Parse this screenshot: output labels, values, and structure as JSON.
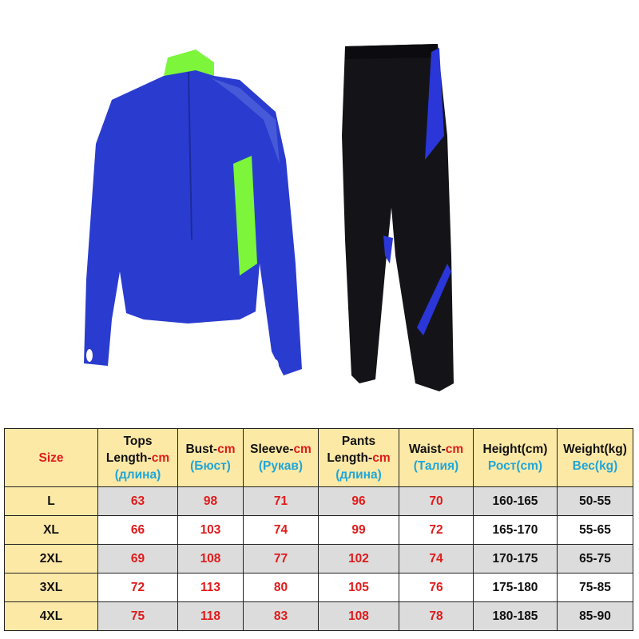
{
  "colors": {
    "header_bg": "#fde9a6",
    "accent_red": "#e01b1b",
    "accent_blue": "#20a6d9",
    "shirt": "#2a3ccf",
    "shirt_accent": "#7cf53a",
    "pants": "#141418",
    "pants_stripe": "#2a36d8"
  },
  "images": {
    "top": "blue long-sleeve half-zip training top with neon green collar and side panels",
    "pants": "black training pants with blue side stripes"
  },
  "header": {
    "size": "Size",
    "tops": {
      "l1": "Tops",
      "l2a": "Length-",
      "l2b": "cm",
      "l3": "(длина)"
    },
    "bust": {
      "l1a": "Bust-",
      "l1b": "cm",
      "l2": "(Бюст)"
    },
    "sleeve": {
      "l1a": "Sleeve-",
      "l1b": "cm",
      "l2": "(Рукав)"
    },
    "pants": {
      "l1": "Pants",
      "l2a": "Length-",
      "l2b": "cm",
      "l3": "(длина)"
    },
    "waist": {
      "l1a": "Waist-",
      "l1b": "cm",
      "l2": "(Талия)"
    },
    "height": {
      "l1": "Height(cm)",
      "l2": "Рост(cm)"
    },
    "weight": {
      "l1": "Weight(kg)",
      "l2": "Вес(kg)"
    }
  },
  "rows": [
    [
      "L",
      "63",
      "98",
      "71",
      "96",
      "70",
      "160-165",
      "50-55"
    ],
    [
      "XL",
      "66",
      "103",
      "74",
      "99",
      "72",
      "165-170",
      "55-65"
    ],
    [
      "2XL",
      "69",
      "108",
      "77",
      "102",
      "74",
      "170-175",
      "65-75"
    ],
    [
      "3XL",
      "72",
      "113",
      "80",
      "105",
      "76",
      "175-180",
      "75-85"
    ],
    [
      "4XL",
      "75",
      "118",
      "83",
      "108",
      "78",
      "180-185",
      "85-90"
    ]
  ]
}
